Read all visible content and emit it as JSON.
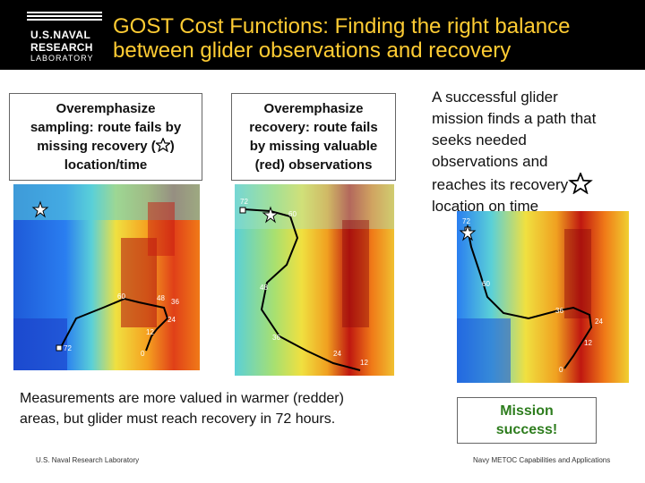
{
  "header": {
    "title_line1": "GOST Cost Functions: Finding the right balance",
    "title_line2": "between glider observations and recovery",
    "logo": {
      "line1": "U.S.NAVAL",
      "line2": "RESEARCH",
      "line3": "LABORATORY"
    }
  },
  "panel_left": {
    "caption_line1": "Overemphasize",
    "caption_line2": "sampling: route fails by",
    "caption_line3_a": "missing recovery (",
    "caption_line3_b": ")",
    "caption_line4": "location/time",
    "labels": [
      "60",
      "48",
      "36",
      "24",
      "12",
      "0",
      "72"
    ]
  },
  "panel_middle": {
    "caption_line1": "Overemphasize",
    "caption_line2": "recovery: route fails",
    "caption_line3": "by missing valuable",
    "caption_line4": "(red) observations",
    "labels": [
      "72",
      "60",
      "48",
      "36",
      "24",
      "12"
    ]
  },
  "panel_right": {
    "text_line1": "A successful glider",
    "text_line2": "mission finds a path that",
    "text_line3": "seeks needed",
    "text_line4": "observations and",
    "text_line5": "reaches its recovery",
    "text_line6": "location on time",
    "labels": [
      "72",
      "60",
      "36",
      "24",
      "12",
      "0"
    ],
    "success_line1": "Mission",
    "success_line2": "success!"
  },
  "note": {
    "line1": "Measurements are more valued in warmer (redder)",
    "line2": "areas, but glider must reach recovery in 72 hours."
  },
  "footer": {
    "left": "U.S. Naval Research Laboratory",
    "right": "Navy  METOC Capabilities and Applications"
  },
  "colors": {
    "header_bg": "#000000",
    "title": "#ffcc33",
    "success": "#2e7d1e"
  }
}
